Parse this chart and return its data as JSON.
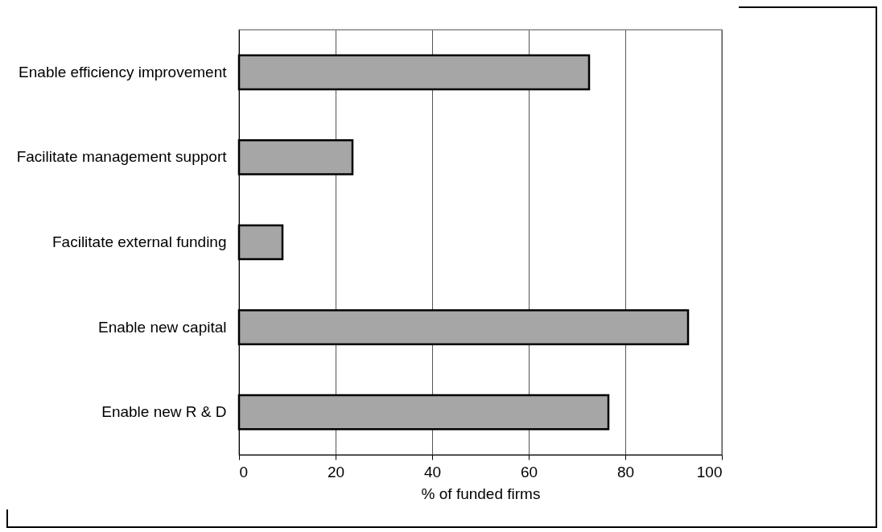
{
  "chart_data": {
    "type": "bar",
    "orientation": "horizontal",
    "xlabel": "% of funded firms",
    "categories": [
      "Enable efficiency improvement",
      "Facilitate management support",
      "Facilitate external funding",
      "Enable new  capital",
      "Enable new  R & D"
    ],
    "values": [
      72.5,
      23.5,
      9,
      93,
      76.5
    ],
    "color": "#a6a6a6",
    "xlim": [
      0,
      100
    ],
    "xticks": [
      0,
      20,
      40,
      60,
      80,
      100
    ],
    "grid": "x"
  }
}
